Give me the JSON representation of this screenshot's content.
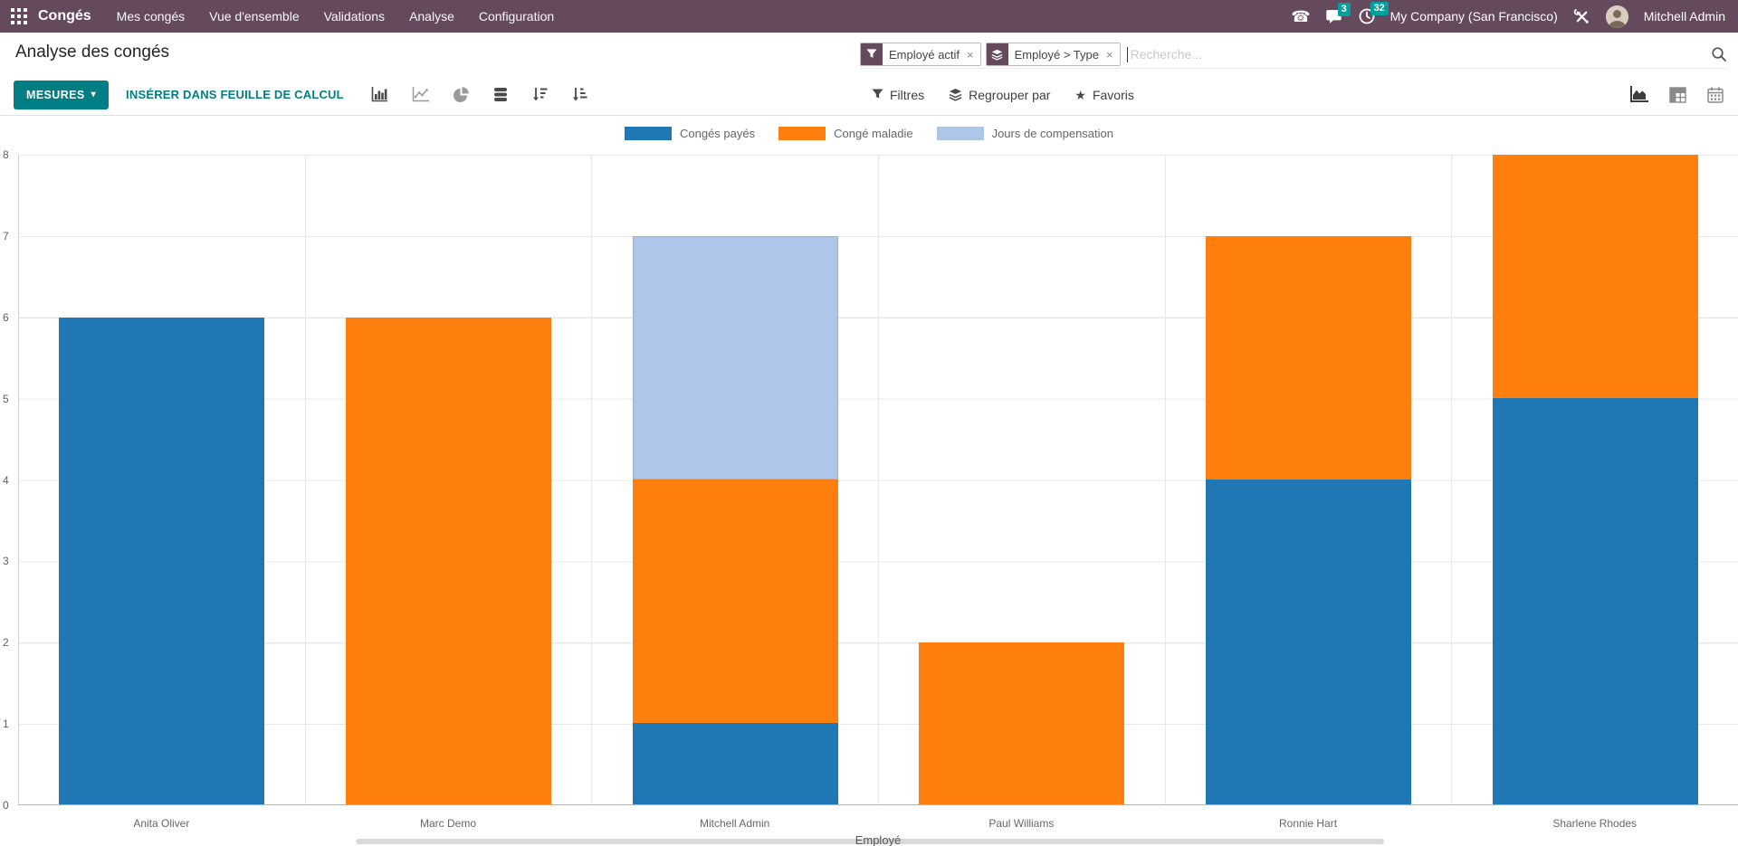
{
  "navbar": {
    "app_name": "Congés",
    "menu": [
      "Mes congés",
      "Vue d'ensemble",
      "Validations",
      "Analyse",
      "Configuration"
    ],
    "messages_badge": "3",
    "activities_badge": "32",
    "company": "My Company (San Francisco)",
    "user": "Mitchell Admin"
  },
  "header": {
    "title": "Analyse des congés",
    "facets": [
      {
        "icon": "filter-icon",
        "label": "Employé actif"
      },
      {
        "icon": "group-by-icon",
        "label": "Employé > Type"
      }
    ],
    "search_placeholder": "Recherche..."
  },
  "control_panel": {
    "measures_label": "MESURES",
    "insert_label": "INSÉRER DANS FEUILLE DE CALCUL",
    "filters_label": "Filtres",
    "group_by_label": "Regrouper par",
    "favorites_label": "Favoris"
  },
  "glyphs": {
    "caret_down": "▾",
    "close": "×",
    "star": "★",
    "phone": "☎"
  },
  "colors": {
    "navbar_bg": "#65495c",
    "badge_teal": "#00a09d",
    "button_teal": "#017e84",
    "paid_blue": "#1f77b4",
    "sick_orange": "#ff7f0e",
    "comp_lightblue": "#aec7e8"
  },
  "chart_data": {
    "type": "bar",
    "stacked": true,
    "title": "",
    "xlabel": "Employé",
    "ylabel": "",
    "ylim": [
      0,
      8
    ],
    "yticks": [
      0,
      1,
      2,
      3,
      4,
      5,
      6,
      7,
      8
    ],
    "grid": true,
    "legend_position": "top",
    "categories": [
      "Anita Oliver",
      "Marc Demo",
      "Mitchell Admin",
      "Paul Williams",
      "Ronnie Hart",
      "Sharlene Rhodes"
    ],
    "series": [
      {
        "name": "Congés payés",
        "color": "#1f77b4",
        "values": [
          6,
          0,
          1,
          0,
          4,
          5
        ]
      },
      {
        "name": "Congé maladie",
        "color": "#ff7f0e",
        "values": [
          0,
          6,
          3,
          2,
          3,
          3
        ]
      },
      {
        "name": "Jours de compensation",
        "color": "#aec7e8",
        "border_color": "#8fb3de",
        "values": [
          0,
          0,
          3,
          0,
          0,
          0
        ]
      }
    ]
  }
}
